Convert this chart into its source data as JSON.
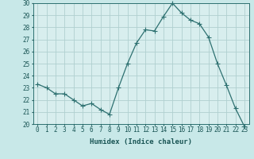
{
  "x": [
    0,
    1,
    2,
    3,
    4,
    5,
    6,
    7,
    8,
    9,
    10,
    11,
    12,
    13,
    14,
    15,
    16,
    17,
    18,
    19,
    20,
    21,
    22,
    23
  ],
  "y": [
    23.3,
    23.0,
    22.5,
    22.5,
    22.0,
    21.5,
    21.7,
    21.2,
    20.8,
    23.0,
    25.0,
    26.7,
    27.8,
    27.7,
    28.9,
    30.0,
    29.2,
    28.6,
    28.3,
    27.2,
    25.0,
    23.2,
    21.3,
    19.8
  ],
  "line_color": "#2d7070",
  "marker": "+",
  "marker_size": 4,
  "bg_color": "#c8e8e8",
  "plot_bg_color": "#d8eeee",
  "grid_color": "#b0d0d0",
  "xlabel": "Humidex (Indice chaleur)",
  "ylim": [
    20,
    30
  ],
  "yticks": [
    20,
    21,
    22,
    23,
    24,
    25,
    26,
    27,
    28,
    29,
    30
  ],
  "xticks": [
    0,
    1,
    2,
    3,
    4,
    5,
    6,
    7,
    8,
    9,
    10,
    11,
    12,
    13,
    14,
    15,
    16,
    17,
    18,
    19,
    20,
    21,
    22,
    23
  ],
  "xlabel_fontsize": 6.5,
  "tick_fontsize": 5.5,
  "xlabel_color": "#1a5555",
  "tick_color": "#1a5555",
  "spine_color": "#2d7070",
  "line_width": 0.9,
  "marker_color": "#2d7070"
}
